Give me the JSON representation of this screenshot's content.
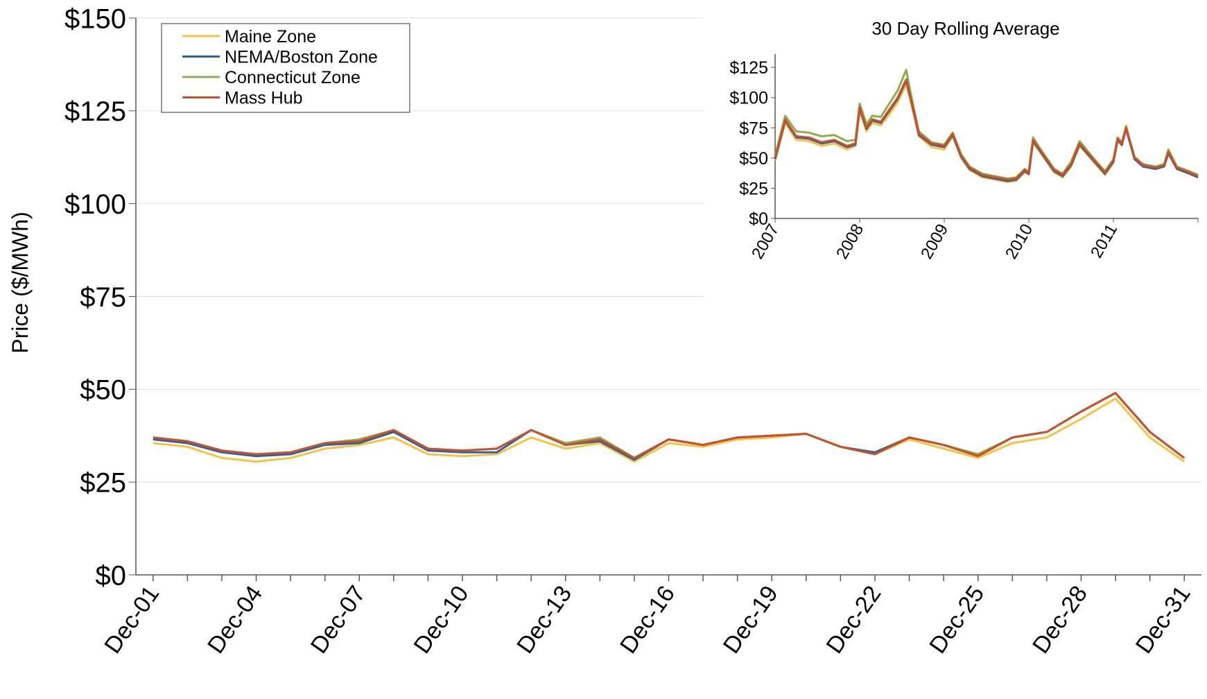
{
  "chart_data": [
    {
      "type": "line",
      "y_label": "Price ($/MWh)",
      "categories": [
        "Dec-01",
        null,
        null,
        "Dec-04",
        null,
        null,
        "Dec-07",
        null,
        null,
        "Dec-10",
        null,
        null,
        "Dec-13",
        null,
        null,
        "Dec-16",
        null,
        null,
        "Dec-19",
        null,
        null,
        "Dec-22",
        null,
        null,
        "Dec-25",
        null,
        null,
        "Dec-28",
        null,
        null,
        "Dec-31"
      ],
      "ylim": [
        0,
        150
      ],
      "yticks": [
        {
          "value": 0,
          "label": "$0"
        },
        {
          "value": 25,
          "label": "$25"
        },
        {
          "value": 50,
          "label": "$50"
        },
        {
          "value": 75,
          "label": "$75"
        },
        {
          "value": 100,
          "label": "$100"
        },
        {
          "value": 125,
          "label": "$125"
        },
        {
          "value": 150,
          "label": "$150"
        }
      ],
      "grid": true,
      "legend": "top-left",
      "series": [
        {
          "name": "Maine Zone",
          "color": "#f5c242",
          "values": [
            35.5,
            34.5,
            31.5,
            30.5,
            31.5,
            34,
            35,
            37,
            32.5,
            32,
            32.5,
            37,
            34,
            35.5,
            30.5,
            35.5,
            34.5,
            36.5,
            37,
            38,
            34.5,
            32.5,
            36.5,
            34,
            31.5,
            35.5,
            37,
            42,
            47.5,
            37,
            30.5
          ]
        },
        {
          "name": "NEMA/Boston Zone",
          "color": "#2e5f9e",
          "values": [
            36.5,
            35.5,
            33,
            32,
            32.5,
            35,
            35.5,
            38.5,
            33.5,
            33,
            33,
            39,
            35,
            36,
            31,
            36.5,
            35,
            37,
            37.5,
            38,
            34.5,
            33,
            37,
            35,
            32,
            37,
            38.5,
            44,
            49,
            38.5,
            31.5
          ]
        },
        {
          "name": "Connecticut Zone",
          "color": "#8cad4f",
          "values": [
            37,
            36,
            33.5,
            32.5,
            33,
            35.5,
            36.5,
            39,
            34,
            33.5,
            34,
            39,
            35.5,
            37,
            31.5,
            36.5,
            35,
            37,
            37.5,
            38,
            34.5,
            32.5,
            37,
            35,
            32.5,
            37,
            38.5,
            44,
            49,
            38.5,
            31.5
          ]
        },
        {
          "name": "Mass Hub",
          "color": "#c9502a",
          "values": [
            37,
            36,
            33.5,
            32.5,
            33,
            35.5,
            36,
            39,
            34,
            33.5,
            34,
            39,
            35,
            36.5,
            31.5,
            36.5,
            35,
            37,
            37.5,
            38,
            34.5,
            32.5,
            37,
            35,
            32,
            37,
            38.5,
            44,
            49,
            38.5,
            31.5
          ]
        }
      ]
    },
    {
      "type": "line",
      "title": "30 Day Rolling Average",
      "x": [
        2007.0,
        2007.12,
        2007.25,
        2007.4,
        2007.55,
        2007.7,
        2007.85,
        2007.95,
        2008.0,
        2008.08,
        2008.15,
        2008.25,
        2008.35,
        2008.45,
        2008.55,
        2008.62,
        2008.7,
        2008.85,
        2009.0,
        2009.1,
        2009.2,
        2009.3,
        2009.45,
        2009.6,
        2009.75,
        2009.85,
        2009.95,
        2010.0,
        2010.05,
        2010.15,
        2010.3,
        2010.4,
        2010.5,
        2010.6,
        2010.75,
        2010.9,
        2011.0,
        2011.05,
        2011.1,
        2011.15,
        2011.25,
        2011.35,
        2011.5,
        2011.6,
        2011.65,
        2011.75,
        2011.9,
        2012.0
      ],
      "xlim": [
        2007,
        2012
      ],
      "xticks": [
        2007,
        2008,
        2009,
        2010,
        2011
      ],
      "ylim": [
        0,
        136
      ],
      "yticks": [
        {
          "value": 0,
          "label": "$0"
        },
        {
          "value": 25,
          "label": "$25"
        },
        {
          "value": 50,
          "label": "$50"
        },
        {
          "value": 75,
          "label": "$75"
        },
        {
          "value": 100,
          "label": "$100"
        },
        {
          "value": 125,
          "label": "$125"
        }
      ],
      "series": [
        {
          "name": "Maine Zone",
          "color": "#f5c242",
          "values": [
            48,
            79,
            65,
            64,
            60,
            62,
            57,
            60,
            89,
            72,
            79,
            77,
            86,
            96,
            111,
            92,
            68,
            59,
            57,
            68,
            50,
            40,
            34,
            32,
            30,
            31,
            38,
            36,
            63,
            53,
            38,
            34,
            43,
            60,
            48,
            36,
            46,
            64,
            60,
            77,
            49,
            43,
            41,
            43,
            54,
            41,
            37,
            34
          ]
        },
        {
          "name": "NEMA/Boston Zone",
          "color": "#2e5f9e",
          "values": [
            49,
            81,
            67,
            66,
            62,
            64,
            59,
            61,
            91,
            74,
            81,
            79,
            89,
            99,
            114,
            94,
            69,
            61,
            59,
            69,
            51,
            41,
            35,
            33,
            31,
            32,
            39,
            37,
            64,
            54,
            39,
            35,
            44,
            61,
            49,
            37,
            47,
            65,
            61,
            74,
            49,
            43,
            41,
            43,
            54,
            41,
            37,
            34
          ]
        },
        {
          "name": "Connecticut Zone",
          "color": "#8cad4f",
          "values": [
            52,
            85,
            72,
            71,
            68,
            69,
            64,
            65,
            95,
            78,
            85,
            84,
            95,
            106,
            123,
            98,
            72,
            63,
            61,
            71,
            53,
            43,
            37,
            35,
            33,
            34,
            41,
            39,
            67,
            56,
            41,
            37,
            47,
            64,
            51,
            39,
            49,
            67,
            63,
            76,
            51,
            45,
            43,
            45,
            57,
            43,
            39,
            36
          ]
        },
        {
          "name": "Mass Hub",
          "color": "#c9502a",
          "values": [
            50,
            82,
            68,
            67,
            63,
            65,
            60,
            62,
            92,
            75,
            82,
            80,
            90,
            100,
            115,
            95,
            70,
            62,
            60,
            70,
            52,
            42,
            36,
            34,
            32,
            33,
            40,
            38,
            65,
            55,
            40,
            36,
            45,
            62,
            50,
            38,
            48,
            66,
            62,
            75,
            50,
            44,
            42,
            44,
            55,
            42,
            38,
            35
          ]
        }
      ]
    }
  ]
}
